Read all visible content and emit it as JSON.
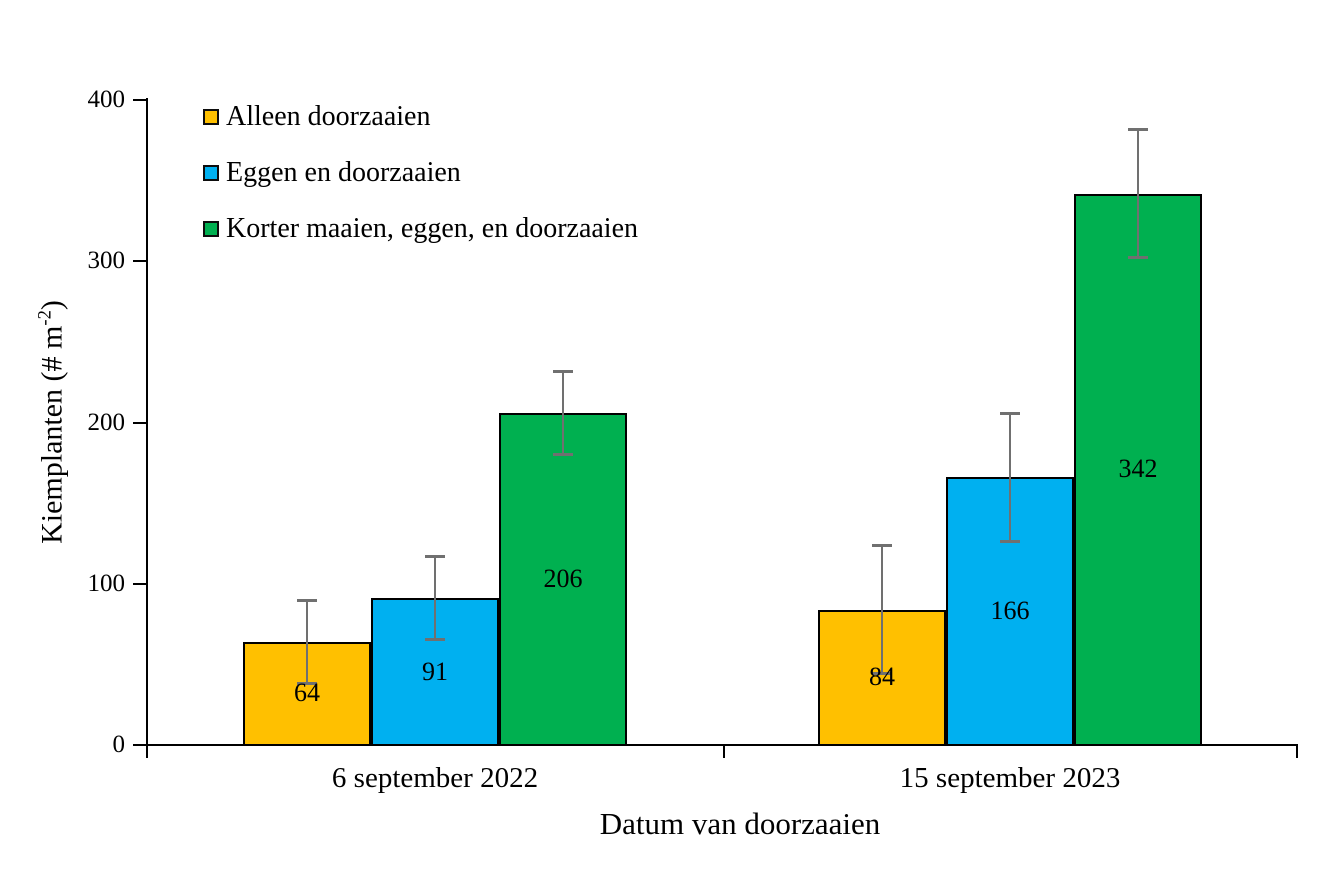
{
  "chart_data": {
    "type": "bar",
    "title": "",
    "categories": [
      "6 september 2022",
      "15 september 2023"
    ],
    "series": [
      {
        "name": "Alleen doorzaaien",
        "color": "#FFC000",
        "values": [
          64,
          84
        ],
        "errors": [
          26,
          40
        ]
      },
      {
        "name": "Eggen en doorzaaien",
        "color": "#00B0F0",
        "values": [
          91,
          166
        ],
        "errors": [
          26,
          40
        ]
      },
      {
        "name": "Korter maaien, eggen, en doorzaaien",
        "color": "#00B050",
        "values": [
          206,
          342
        ],
        "errors": [
          26,
          40
        ]
      }
    ],
    "value_labels": [
      [
        64,
        84
      ],
      [
        91,
        166
      ],
      [
        206,
        342
      ]
    ],
    "xlabel": "Datum van doorzaaien",
    "ylabel": "Kiemplanten (# m-2)",
    "ylabel_parts": {
      "main": "Kiemplanten (# m",
      "sup": "-2",
      "close": ")"
    },
    "ylim": [
      0,
      400
    ],
    "yticks": [
      0,
      100,
      200,
      300,
      400
    ],
    "grid": false,
    "legend_position": "top-left",
    "colors": {
      "axis": "#000000",
      "bar_border": "#000000",
      "error_bar": "#707070",
      "text": "#000000"
    }
  }
}
